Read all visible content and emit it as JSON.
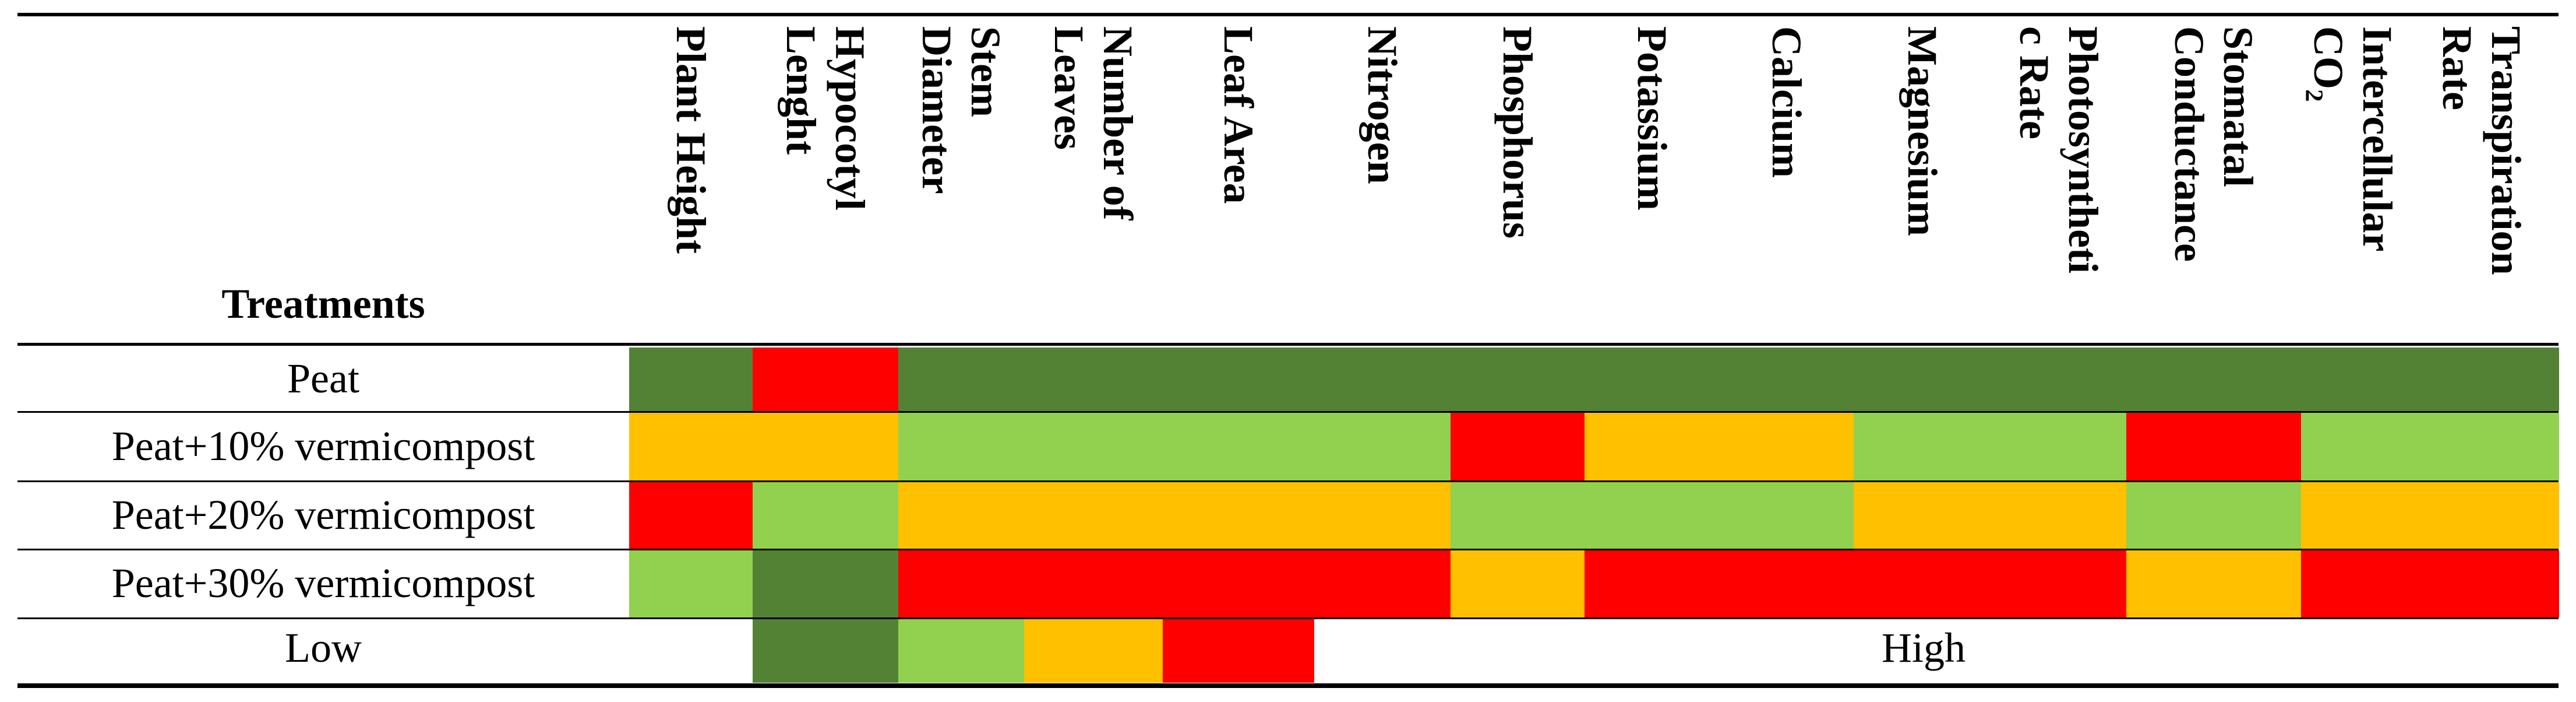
{
  "colors": {
    "dark_green": "#548235",
    "light_green": "#92D050",
    "orange": "#FFC000",
    "red": "#FF0000"
  },
  "table": {
    "header_treatments": "Treatments",
    "columns": [
      {
        "label": "Plant Height"
      },
      {
        "label": "Hypocotyl\nLenght"
      },
      {
        "label": "Stem\nDiameter"
      },
      {
        "label": "Number of\nLeaves"
      },
      {
        "label": "Leaf Area"
      },
      {
        "label": "Nitrogen"
      },
      {
        "label": "Phosphorus"
      },
      {
        "label": "Potassium"
      },
      {
        "label": "Calcium"
      },
      {
        "label": "Magnesium"
      },
      {
        "label": "Photosyntheti\nc Rate"
      },
      {
        "label": "Stomatal\nConductance"
      },
      {
        "label": "Intercellular\nCO₂"
      },
      {
        "label": "Transpiration\nRate"
      }
    ],
    "rows": [
      {
        "treatment": "Peat",
        "cells": [
          "dark_green",
          "red",
          "dark_green",
          "dark_green",
          "dark_green",
          "dark_green",
          "dark_green",
          "dark_green",
          "dark_green",
          "dark_green",
          "dark_green",
          "dark_green",
          "dark_green",
          "dark_green"
        ]
      },
      {
        "treatment": "Peat+10% vermicompost",
        "cells": [
          "orange",
          "orange",
          "light_green",
          "light_green",
          "light_green",
          "light_green",
          "red",
          "orange",
          "orange",
          "light_green",
          "light_green",
          "red",
          "light_green",
          "light_green"
        ]
      },
      {
        "treatment": "Peat+20% vermicompost",
        "cells": [
          "red",
          "light_green",
          "orange",
          "orange",
          "orange",
          "orange",
          "light_green",
          "light_green",
          "light_green",
          "orange",
          "orange",
          "light_green",
          "orange",
          "orange"
        ]
      },
      {
        "treatment": "Peat+30% vermicompost",
        "cells": [
          "light_green",
          "dark_green",
          "red",
          "red",
          "red",
          "red",
          "orange",
          "red",
          "red",
          "red",
          "red",
          "orange",
          "red",
          "red"
        ]
      }
    ]
  },
  "legend": {
    "low_label": "Low",
    "high_label": "High",
    "scale": [
      "dark_green",
      "light_green",
      "orange",
      "red"
    ]
  }
}
